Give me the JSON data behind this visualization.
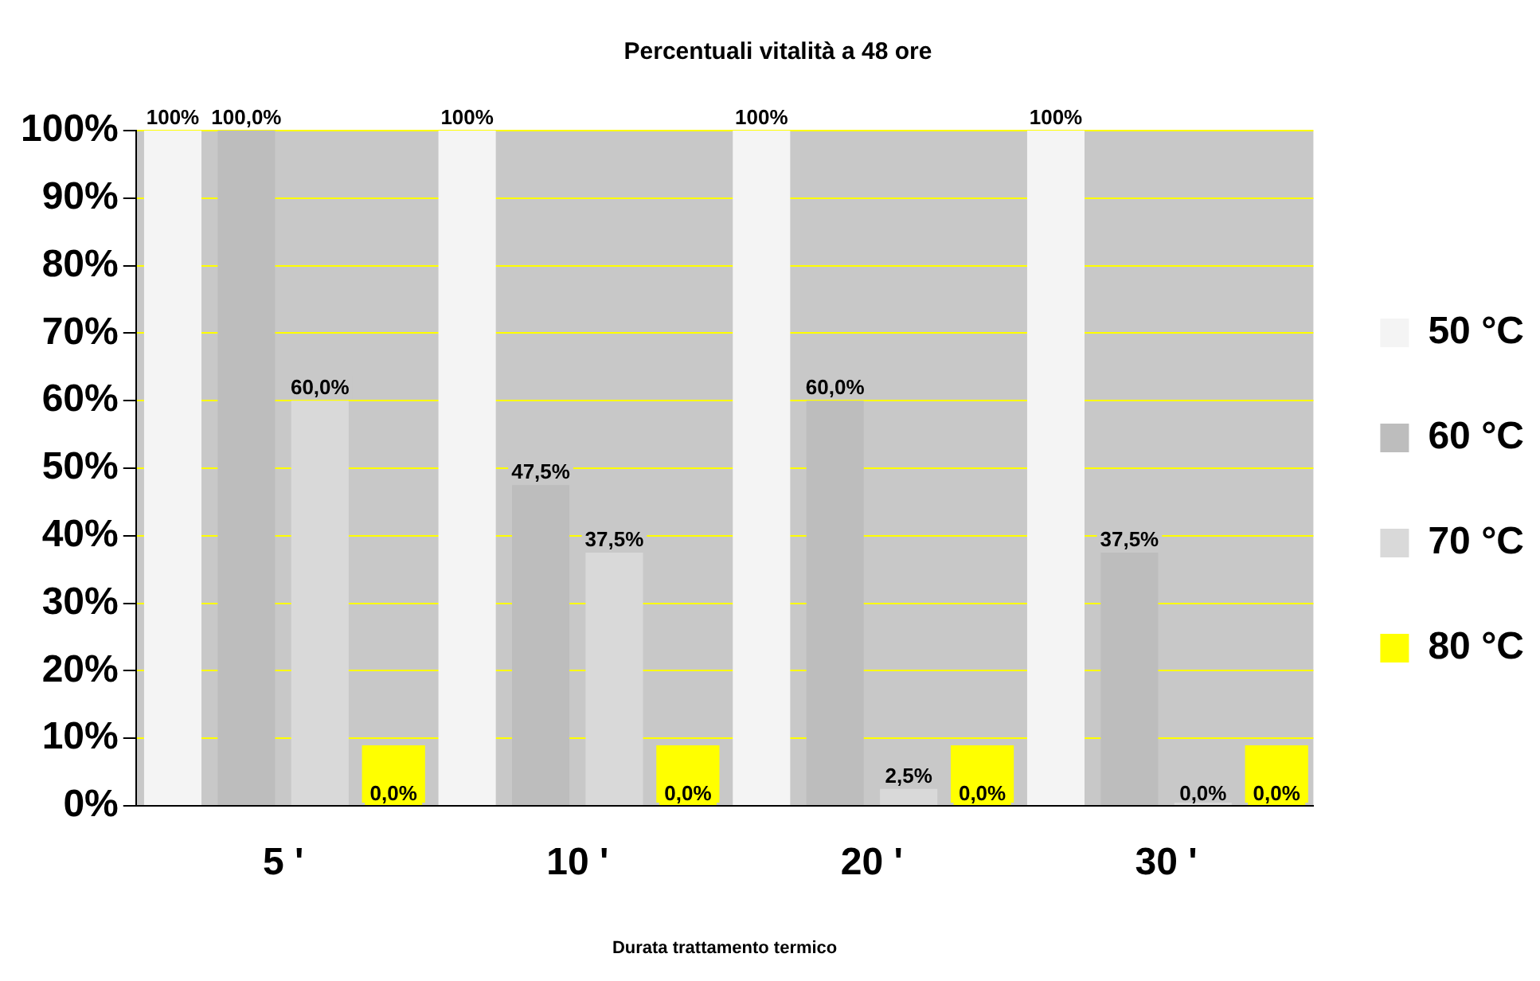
{
  "chart_data": {
    "type": "bar",
    "title": "Percentuali vitalità a 48 ore",
    "xlabel": "Durata trattamento termico",
    "categories": [
      "5 '",
      "10 '",
      "20 '",
      "30 '"
    ],
    "series": [
      {
        "name": "50 °C",
        "color": "#f4f4f4",
        "values": [
          100,
          100,
          100,
          100
        ],
        "value_labels": [
          "100%",
          "100%",
          "100%",
          "100%"
        ]
      },
      {
        "name": "60 °C",
        "color": "#bdbdbd",
        "values": [
          100,
          47.5,
          60,
          37.5
        ],
        "value_labels": [
          "100,0%",
          "47,5%",
          "60,0%",
          "37,5%"
        ]
      },
      {
        "name": "70 °C",
        "color": "#d9d9d9",
        "values": [
          60,
          37.5,
          2.5,
          0
        ],
        "value_labels": [
          "60,0%",
          "37,5%",
          "2,5%",
          "0,0%"
        ]
      },
      {
        "name": "80 °C",
        "color": "#ffff00",
        "values": [
          0,
          0,
          0,
          0
        ],
        "value_labels": [
          "0,0%",
          "0,0%",
          "0,0%",
          "0,0%"
        ]
      }
    ],
    "ylim": [
      0,
      100
    ],
    "yticks": [
      {
        "value": 0,
        "label": "0%"
      },
      {
        "value": 10,
        "label": "10%"
      },
      {
        "value": 20,
        "label": "20%"
      },
      {
        "value": 30,
        "label": "30%"
      },
      {
        "value": 40,
        "label": "40%"
      },
      {
        "value": 50,
        "label": "50%"
      },
      {
        "value": 60,
        "label": "60%"
      },
      {
        "value": 70,
        "label": "70%"
      },
      {
        "value": 80,
        "label": "80%"
      },
      {
        "value": 90,
        "label": "90%"
      },
      {
        "value": 100,
        "label": "100%"
      }
    ],
    "grid": "y",
    "legend": "right"
  }
}
